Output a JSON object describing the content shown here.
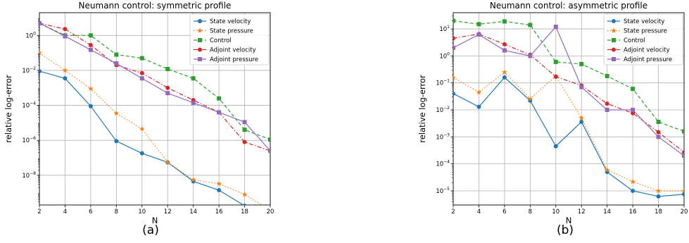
{
  "panels": [
    {
      "caption": "(a)",
      "chart_data": {
        "type": "line",
        "title": "Neumann control: symmetric profile",
        "xlabel": "N",
        "ylabel": "relative log-error",
        "yscale": "log",
        "xlim": [
          2,
          20
        ],
        "ylim": [
          2e-10,
          20
        ],
        "grid": true,
        "legend_loc": "upper right",
        "xticks": [
          2,
          4,
          6,
          8,
          10,
          12,
          14,
          16,
          18,
          20
        ],
        "yticks": [
          {
            "value": 1e-08,
            "base": "10",
            "exp": "−8"
          },
          {
            "value": 1e-06,
            "base": "10",
            "exp": "−6"
          },
          {
            "value": 0.0001,
            "base": "10",
            "exp": "−4"
          },
          {
            "value": 0.01,
            "base": "10",
            "exp": "−2"
          },
          {
            "value": 1,
            "base": "10",
            "exp": "0"
          }
        ],
        "x": [
          2,
          4,
          6,
          8,
          10,
          12,
          14,
          16,
          18,
          20
        ],
        "series": [
          {
            "name": "State velocity",
            "color": "#1f77b4",
            "dash": "solid",
            "marker": "circle",
            "values": [
              0.009,
              0.0035,
              9e-05,
              9e-07,
              1.8e-07,
              5.5e-08,
              4.5e-09,
              1.4e-09,
              1.8e-10,
              1e-10
            ]
          },
          {
            "name": "State pressure",
            "color": "#ff7f0e",
            "dash": "dotted",
            "marker": "star",
            "values": [
              0.1,
              0.01,
              0.0009,
              3.5e-05,
              4.5e-06,
              5.5e-08,
              5.5e-09,
              3.3e-09,
              8e-10,
              1e-10
            ]
          },
          {
            "name": "Control",
            "color": "#2ca02c",
            "dash": "dashed",
            "marker": "square",
            "values": [
              5,
              1,
              1,
              0.08,
              0.05,
              0.012,
              0.0035,
              0.00025,
              4e-06,
              1.1e-06
            ]
          },
          {
            "name": "Adjoint velocity",
            "color": "#d62728",
            "dash": "dashdot",
            "marker": "circle",
            "values": [
              5,
              2.3,
              0.28,
              0.02,
              0.007,
              0.001,
              0.0002,
              4e-05,
              8e-07,
              2.5e-07
            ]
          },
          {
            "name": "Adjoint pressure",
            "color": "#9467bd",
            "dash": "solid",
            "marker": "square",
            "values": [
              5,
              0.9,
              0.15,
              0.025,
              0.0035,
              0.0005,
              0.00014,
              4e-05,
              1.1e-05,
              2.5e-07
            ]
          }
        ]
      }
    },
    {
      "caption": "(b)",
      "chart_data": {
        "type": "line",
        "title": "Neumann control: asymmetric profile",
        "xlabel": "N",
        "ylabel": "relative log-error",
        "yscale": "log",
        "xlim": [
          2,
          20
        ],
        "ylim": [
          3e-06,
          40
        ],
        "grid": true,
        "legend_loc": "upper right",
        "xticks": [
          2,
          4,
          6,
          8,
          10,
          12,
          14,
          16,
          18,
          20
        ],
        "yticks": [
          {
            "value": 1e-05,
            "base": "10",
            "exp": "−5"
          },
          {
            "value": 0.0001,
            "base": "10",
            "exp": "−4"
          },
          {
            "value": 0.001,
            "base": "10",
            "exp": "−3"
          },
          {
            "value": 0.01,
            "base": "10",
            "exp": "−2"
          },
          {
            "value": 0.1,
            "base": "10",
            "exp": "−1"
          },
          {
            "value": 1,
            "base": "10",
            "exp": "0"
          },
          {
            "value": 10,
            "base": "10",
            "exp": "1"
          }
        ],
        "x": [
          2,
          4,
          6,
          8,
          10,
          12,
          14,
          16,
          18,
          20
        ],
        "series": [
          {
            "name": "State velocity",
            "color": "#1f77b4",
            "dash": "solid",
            "marker": "circle",
            "values": [
              0.04,
              0.013,
              0.16,
              0.022,
              0.00045,
              0.0036,
              5e-05,
              1e-05,
              6.2e-06,
              7.5e-06
            ]
          },
          {
            "name": "State pressure",
            "color": "#ff7f0e",
            "dash": "dotted",
            "marker": "star",
            "values": [
              0.16,
              0.045,
              0.25,
              0.026,
              0.18,
              0.005,
              6e-05,
              2.2e-05,
              1e-05,
              1e-05
            ]
          },
          {
            "name": "Control",
            "color": "#2ca02c",
            "dash": "dashed",
            "marker": "square",
            "values": [
              20,
              15,
              19,
              14,
              0.6,
              0.5,
              0.18,
              0.06,
              0.0036,
              0.0016
            ]
          },
          {
            "name": "Adjoint velocity",
            "color": "#d62728",
            "dash": "dashdot",
            "marker": "circle",
            "values": [
              4.5,
              6.5,
              2.7,
              1.1,
              0.17,
              0.08,
              0.017,
              0.0075,
              0.0015,
              0.00027
            ]
          },
          {
            "name": "Adjoint pressure",
            "color": "#9467bd",
            "dash": "solid",
            "marker": "square",
            "values": [
              2,
              6.2,
              1.6,
              1.0,
              12,
              0.07,
              0.01,
              0.01,
              0.001,
              0.0002
            ]
          }
        ]
      }
    }
  ]
}
